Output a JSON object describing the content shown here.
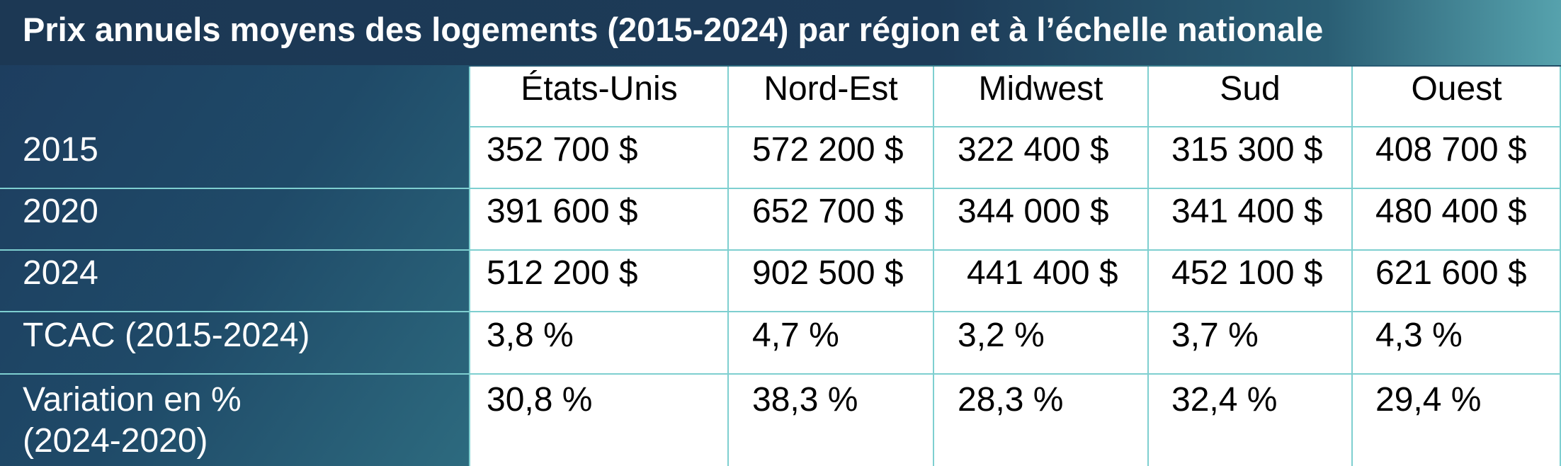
{
  "title": "Prix annuels moyens des logements (2015-2024) par région et à l’échelle nationale",
  "table": {
    "columns": [
      "États-Unis",
      "Nord-Est",
      "Midwest",
      "Sud",
      "Ouest"
    ],
    "rows": [
      {
        "label": "2015",
        "label2": "",
        "values": [
          "352 700 $",
          "572 200 $",
          "322 400 $",
          "315 300 $",
          "408 700 $"
        ]
      },
      {
        "label": "2020",
        "label2": "",
        "values": [
          "391 600 $",
          "652 700 $",
          "344 000 $",
          "341 400 $",
          "480 400 $"
        ]
      },
      {
        "label": "2024",
        "label2": "",
        "values": [
          "512 200 $",
          "902 500 $",
          "441 400 $",
          "452 100 $",
          "621 600 $"
        ]
      },
      {
        "label": "TCAC (2015-2024)",
        "label2": "",
        "values": [
          "3,8 %",
          "4,7 %",
          "3,2 %",
          "3,7 %",
          "4,3 %"
        ]
      },
      {
        "label": "Variation en %",
        "label2": "(2024-2020)",
        "values": [
          "30,8 %",
          "38,3 %",
          "28,3 %",
          "32,4 %",
          "29,4 %"
        ]
      }
    ]
  }
}
